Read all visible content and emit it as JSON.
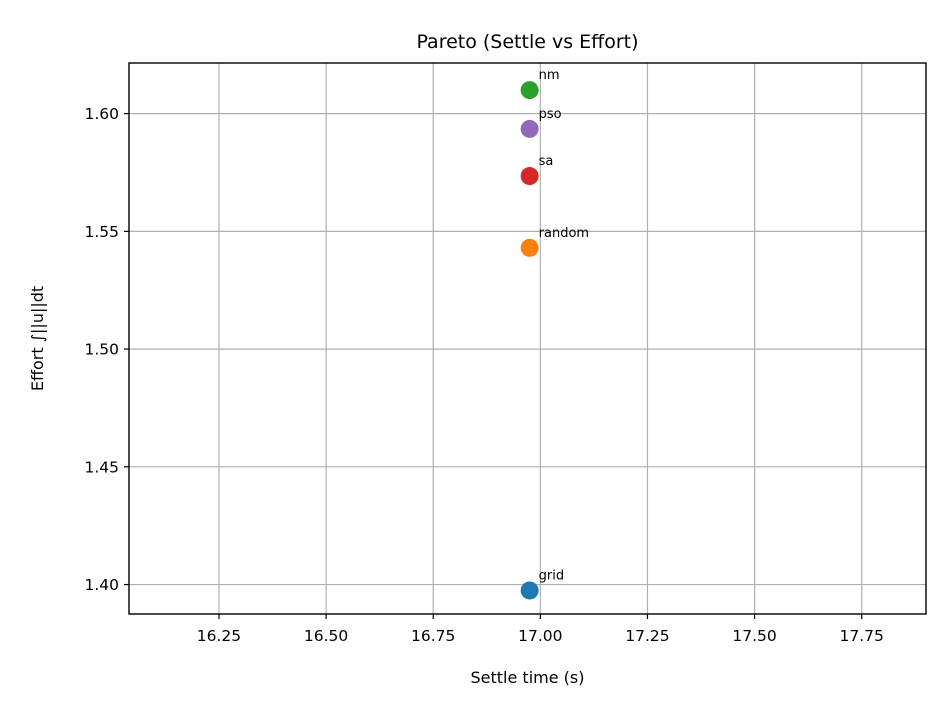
{
  "chart_data": {
    "type": "scatter",
    "title": "Pareto (Settle vs Effort)",
    "xlabel": "Settle time (s)",
    "ylabel": "Effort ∫||u||dt",
    "xlim": [
      16.04,
      17.9
    ],
    "ylim": [
      1.3875,
      1.6215
    ],
    "xticks": [
      16.25,
      16.5,
      16.75,
      17.0,
      17.25,
      17.5,
      17.75
    ],
    "xtick_labels": [
      "16.25",
      "16.50",
      "16.75",
      "17.00",
      "17.25",
      "17.50",
      "17.75"
    ],
    "yticks": [
      1.4,
      1.45,
      1.5,
      1.55,
      1.6
    ],
    "ytick_labels": [
      "1.40",
      "1.45",
      "1.50",
      "1.55",
      "1.60"
    ],
    "grid": true,
    "points": [
      {
        "label": "grid",
        "x": 16.975,
        "y": 1.3975,
        "color": "#1f77b4"
      },
      {
        "label": "random",
        "x": 16.975,
        "y": 1.543,
        "color": "#ff7f0e"
      },
      {
        "label": "sa",
        "x": 16.975,
        "y": 1.5735,
        "color": "#d62728"
      },
      {
        "label": "pso",
        "x": 16.975,
        "y": 1.5935,
        "color": "#9467bd"
      },
      {
        "label": "nm",
        "x": 16.975,
        "y": 1.61,
        "color": "#2ca02c"
      }
    ]
  }
}
